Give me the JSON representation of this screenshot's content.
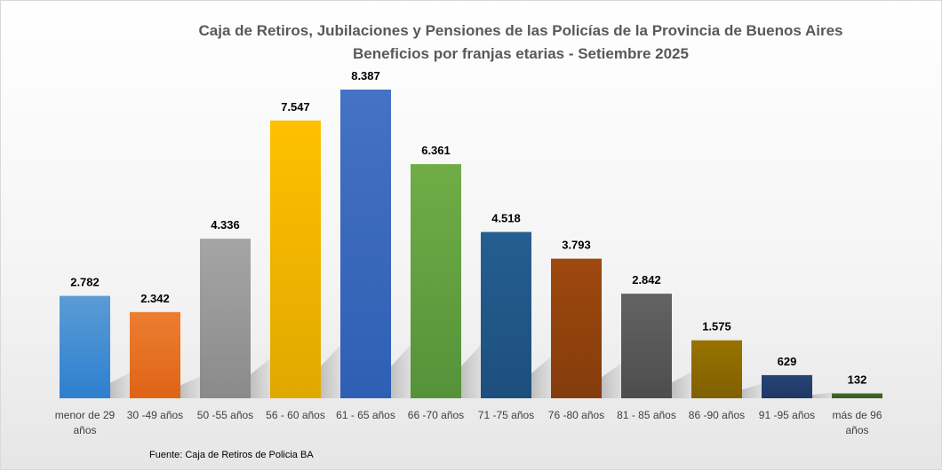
{
  "chart_data": {
    "type": "bar",
    "title": "Caja de Retiros, Jubilaciones y Pensiones de las Policías de la Provincia de Buenos Aires",
    "subtitle": "Beneficios por franjas etarias - Setiembre 2025",
    "xlabel": "",
    "ylabel": "",
    "ylim": [
      0,
      8387
    ],
    "grid": false,
    "categories": [
      [
        "menor de 29",
        "años"
      ],
      [
        "30 -49 años"
      ],
      [
        "50 -55 años"
      ],
      [
        "56 - 60 años"
      ],
      [
        "61 - 65 años"
      ],
      [
        "66 -70 años"
      ],
      [
        "71 -75 años"
      ],
      [
        "76 -80 años"
      ],
      [
        "81 - 85 años"
      ],
      [
        "86 -90 años"
      ],
      [
        "91 -95 años"
      ],
      [
        "más de 96",
        "años"
      ]
    ],
    "values": [
      2782,
      2342,
      4336,
      7547,
      8387,
      6361,
      4518,
      3793,
      2842,
      1575,
      629,
      132
    ],
    "value_labels": [
      "2.782",
      "2.342",
      "4.336",
      "7.547",
      "8.387",
      "6.361",
      "4.518",
      "3.793",
      "2.842",
      "1.575",
      "629",
      "132"
    ],
    "colors": [
      [
        "#5b9bd5",
        "#2e7fd0"
      ],
      [
        "#ed7d31",
        "#de6416"
      ],
      [
        "#a5a5a5",
        "#8a8a8a"
      ],
      [
        "#ffc000",
        "#e0a800"
      ],
      [
        "#4472c4",
        "#2f5fb3"
      ],
      [
        "#70ad47",
        "#55923a"
      ],
      [
        "#255e91",
        "#1d4f7d"
      ],
      [
        "#9e480e",
        "#843c0c"
      ],
      [
        "#636363",
        "#4d4d4d"
      ],
      [
        "#997300",
        "#7f6000"
      ],
      [
        "#264478",
        "#1f3864"
      ],
      [
        "#43682b",
        "#3a5a25"
      ]
    ]
  },
  "source": "Fuente: Caja de Retiros de Policia BA"
}
